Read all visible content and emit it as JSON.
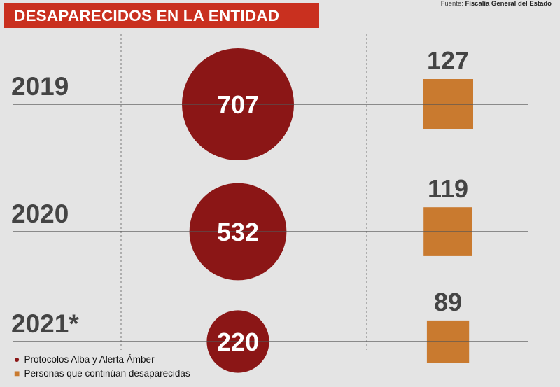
{
  "header": {
    "title": "DESAPARECIDOS EN LA ENTIDAD",
    "source_label": "Fuente:",
    "source_value": "Fiscalía General del Estado"
  },
  "colors": {
    "title_bg": "#c9301f",
    "circle": "#8b1616",
    "square": "#c97a2f",
    "axis_line": "#555555",
    "label_text": "#444444",
    "grid_dash": "#777777"
  },
  "chart_data": {
    "type": "bubble",
    "categories": [
      "2019",
      "2020",
      "2021*"
    ],
    "series": [
      {
        "name": "Protocolos Alba y Alerta Ámber",
        "shape": "circle",
        "values": [
          707,
          532,
          220
        ]
      },
      {
        "name": "Personas que continúan desaparecidas",
        "shape": "square",
        "values": [
          127,
          119,
          89
        ]
      }
    ],
    "legend_position": "bottom-left"
  }
}
